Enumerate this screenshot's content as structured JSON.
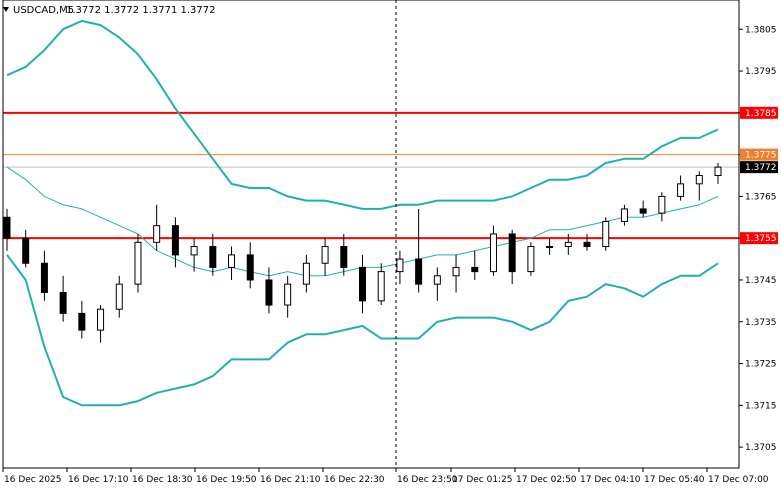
{
  "chart_data": {
    "type": "candlestick",
    "header": {
      "symbol": "USDCAD",
      "timeframe": "M5",
      "title": "USDCAD,M5",
      "ohlc_text": "1.3772 1.3772 1.3771 1.3772"
    },
    "ylim": [
      1.37,
      1.3812
    ],
    "y_ticks": [
      1.3805,
      1.3795,
      1.3785,
      1.3775,
      1.3765,
      1.3755,
      1.3745,
      1.3735,
      1.3725,
      1.3715,
      1.3705
    ],
    "y_tick_labels": [
      "1.3805",
      "1.3795",
      "1.3785",
      "1.3775",
      "1.3765",
      "1.3755",
      "1.3745",
      "1.3735",
      "1.3725",
      "1.3715",
      "1.3705"
    ],
    "x_tick_labels": [
      "16 Dec 2025",
      "16 Dec 17:10",
      "16 Dec 18:30",
      "16 Dec 19:50",
      "16 Dec 21:10",
      "16 Dec 22:30",
      "16 Dec 23:50",
      "17 Dec 01:25",
      "17 Dec 02:50",
      "17 Dec 04:10",
      "17 Dec 05:40",
      "17 Dec 07:00"
    ],
    "horizontal_levels": [
      {
        "value": 1.3785,
        "label": "1.3785",
        "color": "#ff0000"
      },
      {
        "value": 1.3755,
        "label": "1.3755",
        "color": "#ff0000"
      },
      {
        "value": 1.3775,
        "label": "1.3775",
        "color": "#f08030"
      }
    ],
    "current_price": {
      "value": 1.3772,
      "label": "1.3772",
      "color": "#000000"
    },
    "bollinger_upper": [
      1.3794,
      1.3796,
      1.38,
      1.3805,
      1.3807,
      1.3806,
      1.3803,
      1.3799,
      1.3793,
      1.3786,
      1.378,
      1.3774,
      1.3768,
      1.3767,
      1.3767,
      1.3765,
      1.3764,
      1.3764,
      1.3763,
      1.3762,
      1.3762,
      1.3763,
      1.3763,
      1.3764,
      1.3764,
      1.3764,
      1.3764,
      1.3765,
      1.3767,
      1.3769,
      1.3769,
      1.377,
      1.3773,
      1.3774,
      1.3774,
      1.3777,
      1.3779,
      1.3779,
      1.3781
    ],
    "bollinger_middle": [
      1.3772,
      1.3769,
      1.3765,
      1.3763,
      1.3762,
      1.376,
      1.3758,
      1.3756,
      1.3752,
      1.375,
      1.3748,
      1.3747,
      1.3748,
      1.3747,
      1.3746,
      1.3747,
      1.3746,
      1.3746,
      1.3747,
      1.3748,
      1.3748,
      1.3749,
      1.375,
      1.3751,
      1.3751,
      1.3752,
      1.3753,
      1.3754,
      1.3755,
      1.3757,
      1.3757,
      1.3758,
      1.3759,
      1.376,
      1.376,
      1.3761,
      1.3762,
      1.3763,
      1.3765
    ],
    "bollinger_lower": [
      1.3751,
      1.3745,
      1.3729,
      1.3717,
      1.3715,
      1.3715,
      1.3715,
      1.3716,
      1.3718,
      1.3719,
      1.372,
      1.3722,
      1.3726,
      1.3726,
      1.3726,
      1.373,
      1.3732,
      1.3732,
      1.3733,
      1.3734,
      1.3731,
      1.3731,
      1.3731,
      1.3735,
      1.3736,
      1.3736,
      1.3736,
      1.3735,
      1.3733,
      1.3735,
      1.374,
      1.3741,
      1.3744,
      1.3743,
      1.3741,
      1.3744,
      1.3746,
      1.3746,
      1.3749
    ],
    "ohlc": [
      [
        1.376,
        1.3762,
        1.3752,
        1.3755
      ],
      [
        1.3755,
        1.3757,
        1.3748,
        1.3749
      ],
      [
        1.3749,
        1.3752,
        1.374,
        1.3742
      ],
      [
        1.3742,
        1.3746,
        1.3735,
        1.3737
      ],
      [
        1.3737,
        1.374,
        1.3731,
        1.3733
      ],
      [
        1.3733,
        1.3739,
        1.373,
        1.3738
      ],
      [
        1.3738,
        1.3746,
        1.3736,
        1.3744
      ],
      [
        1.3744,
        1.3756,
        1.3742,
        1.3754
      ],
      [
        1.3754,
        1.3763,
        1.3752,
        1.3758
      ],
      [
        1.3758,
        1.376,
        1.3748,
        1.3751
      ],
      [
        1.3751,
        1.3755,
        1.3747,
        1.3753
      ],
      [
        1.3753,
        1.3756,
        1.3746,
        1.3748
      ],
      [
        1.3748,
        1.3753,
        1.3745,
        1.3751
      ],
      [
        1.3751,
        1.3754,
        1.3743,
        1.3745
      ],
      [
        1.3745,
        1.3748,
        1.3737,
        1.3739
      ],
      [
        1.3739,
        1.3746,
        1.3736,
        1.3744
      ],
      [
        1.3744,
        1.3751,
        1.3742,
        1.3749
      ],
      [
        1.3749,
        1.3755,
        1.3746,
        1.3753
      ],
      [
        1.3753,
        1.3756,
        1.3746,
        1.3748
      ],
      [
        1.3748,
        1.3751,
        1.3737,
        1.374
      ],
      [
        1.374,
        1.3749,
        1.3739,
        1.3747
      ],
      [
        1.3747,
        1.3752,
        1.3744,
        1.375
      ],
      [
        1.375,
        1.3762,
        1.3742,
        1.3744
      ],
      [
        1.3744,
        1.3748,
        1.374,
        1.3746
      ],
      [
        1.3746,
        1.3751,
        1.3742,
        1.3748
      ],
      [
        1.3748,
        1.3752,
        1.3745,
        1.3747
      ],
      [
        1.3747,
        1.3758,
        1.3746,
        1.3756
      ],
      [
        1.3756,
        1.3757,
        1.3744,
        1.3747
      ],
      [
        1.3747,
        1.3754,
        1.3746,
        1.3753
      ],
      [
        1.3753,
        1.3755,
        1.3751,
        1.3753
      ],
      [
        1.3753,
        1.3756,
        1.3751,
        1.3754
      ],
      [
        1.3754,
        1.3756,
        1.3752,
        1.3753
      ],
      [
        1.3753,
        1.376,
        1.3752,
        1.3759
      ],
      [
        1.3759,
        1.3763,
        1.3758,
        1.3762
      ],
      [
        1.3762,
        1.3764,
        1.376,
        1.3761
      ],
      [
        1.3761,
        1.3766,
        1.3759,
        1.3765
      ],
      [
        1.3765,
        1.377,
        1.3764,
        1.3768
      ],
      [
        1.3768,
        1.3771,
        1.3764,
        1.377
      ],
      [
        1.377,
        1.3773,
        1.3768,
        1.3772
      ]
    ]
  }
}
